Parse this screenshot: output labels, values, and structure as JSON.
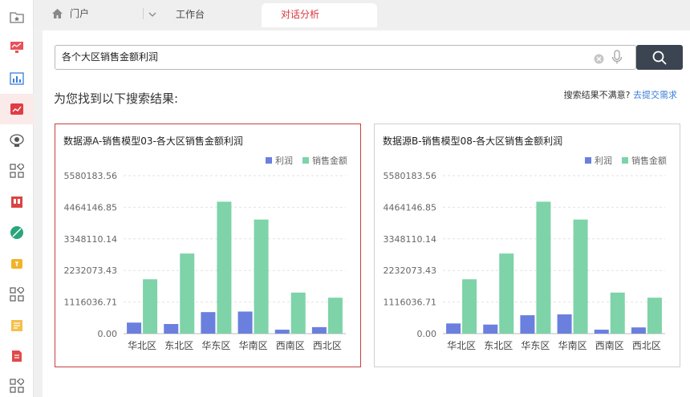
{
  "tabbar": {
    "home_label": "门户",
    "tabs": [
      {
        "label": "工作台"
      },
      {
        "label": "对话分析"
      }
    ]
  },
  "search": {
    "value": "各个大区销售金额利润",
    "placeholder": ""
  },
  "results": {
    "title": "为您找到以下搜索结果:",
    "feedback_text": "搜索结果不满意?",
    "feedback_link": "去提交需求"
  },
  "colors": {
    "profit": "#6b7fde",
    "sales": "#7ed3a8",
    "accent": "#d9363e",
    "search_button": "#3b4451"
  },
  "icons": [
    "home-icon",
    "chevron-down-icon",
    "clear-icon",
    "microphone-icon",
    "search-icon",
    "folder-star-icon",
    "monitor-chart-icon",
    "dashboard-icon",
    "trend-chart-icon",
    "satellite-icon",
    "apps-icon",
    "book-icon",
    "leaf-icon",
    "badge-icon",
    "apps-icon",
    "note-icon",
    "document-icon",
    "apps-icon"
  ],
  "chart_data": [
    {
      "type": "bar",
      "title": "数据源A-销售模型03-各大区销售金额利润",
      "categories": [
        "华北区",
        "东北区",
        "华东区",
        "华南区",
        "西南区",
        "西北区"
      ],
      "series": [
        {
          "name": "利润",
          "values": [
            390000,
            340000,
            760000,
            780000,
            140000,
            230000
          ]
        },
        {
          "name": "销售金额",
          "values": [
            1920000,
            2830000,
            4660000,
            4030000,
            1450000,
            1270000
          ]
        }
      ],
      "ylim": [
        0,
        5580183.56
      ],
      "yticks": [
        "0.00",
        "1116036.71",
        "2232073.43",
        "3348110.14",
        "4464146.85",
        "5580183.56"
      ],
      "legend": "top-right",
      "grid": true
    },
    {
      "type": "bar",
      "title": "数据源B-销售模型08-各大区销售金额利润",
      "categories": [
        "华北区",
        "东北区",
        "华东区",
        "华南区",
        "西南区",
        "西北区"
      ],
      "series": [
        {
          "name": "利润",
          "values": [
            360000,
            320000,
            650000,
            680000,
            140000,
            220000
          ]
        },
        {
          "name": "销售金额",
          "values": [
            1920000,
            2830000,
            4660000,
            4030000,
            1450000,
            1270000
          ]
        }
      ],
      "ylim": [
        0,
        5580183.56
      ],
      "yticks": [
        "0.00",
        "1116036.71",
        "2232073.43",
        "3348110.14",
        "4464146.85",
        "5580183.56"
      ],
      "legend": "top-right",
      "grid": true
    }
  ]
}
